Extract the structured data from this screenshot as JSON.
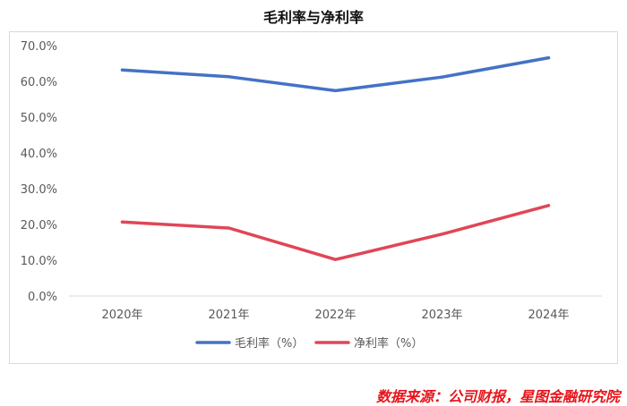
{
  "page": {
    "title": "毛利率与净利率",
    "source": "数据来源：公司财报，星图金融研究院"
  },
  "colors": {
    "gross": "#4472c4",
    "net": "#e04657",
    "grid": "#d9d9d9",
    "text": "#595959"
  },
  "chart_data": {
    "type": "line",
    "title": "毛利率与净利率",
    "categories": [
      "2020年",
      "2021年",
      "2022年",
      "2023年",
      "2024年"
    ],
    "y_ticks": [
      "0.0%",
      "10.0%",
      "20.0%",
      "30.0%",
      "40.0%",
      "50.0%",
      "60.0%",
      "70.0%"
    ],
    "ylim": [
      0,
      70
    ],
    "grid": false,
    "legend_position": "bottom",
    "series": [
      {
        "name": "毛利率（%）",
        "values": [
          63.2,
          61.3,
          57.4,
          61.2,
          66.6
        ]
      },
      {
        "name": "净利率（%）",
        "values": [
          20.7,
          19.0,
          10.2,
          17.3,
          25.3
        ]
      }
    ]
  }
}
